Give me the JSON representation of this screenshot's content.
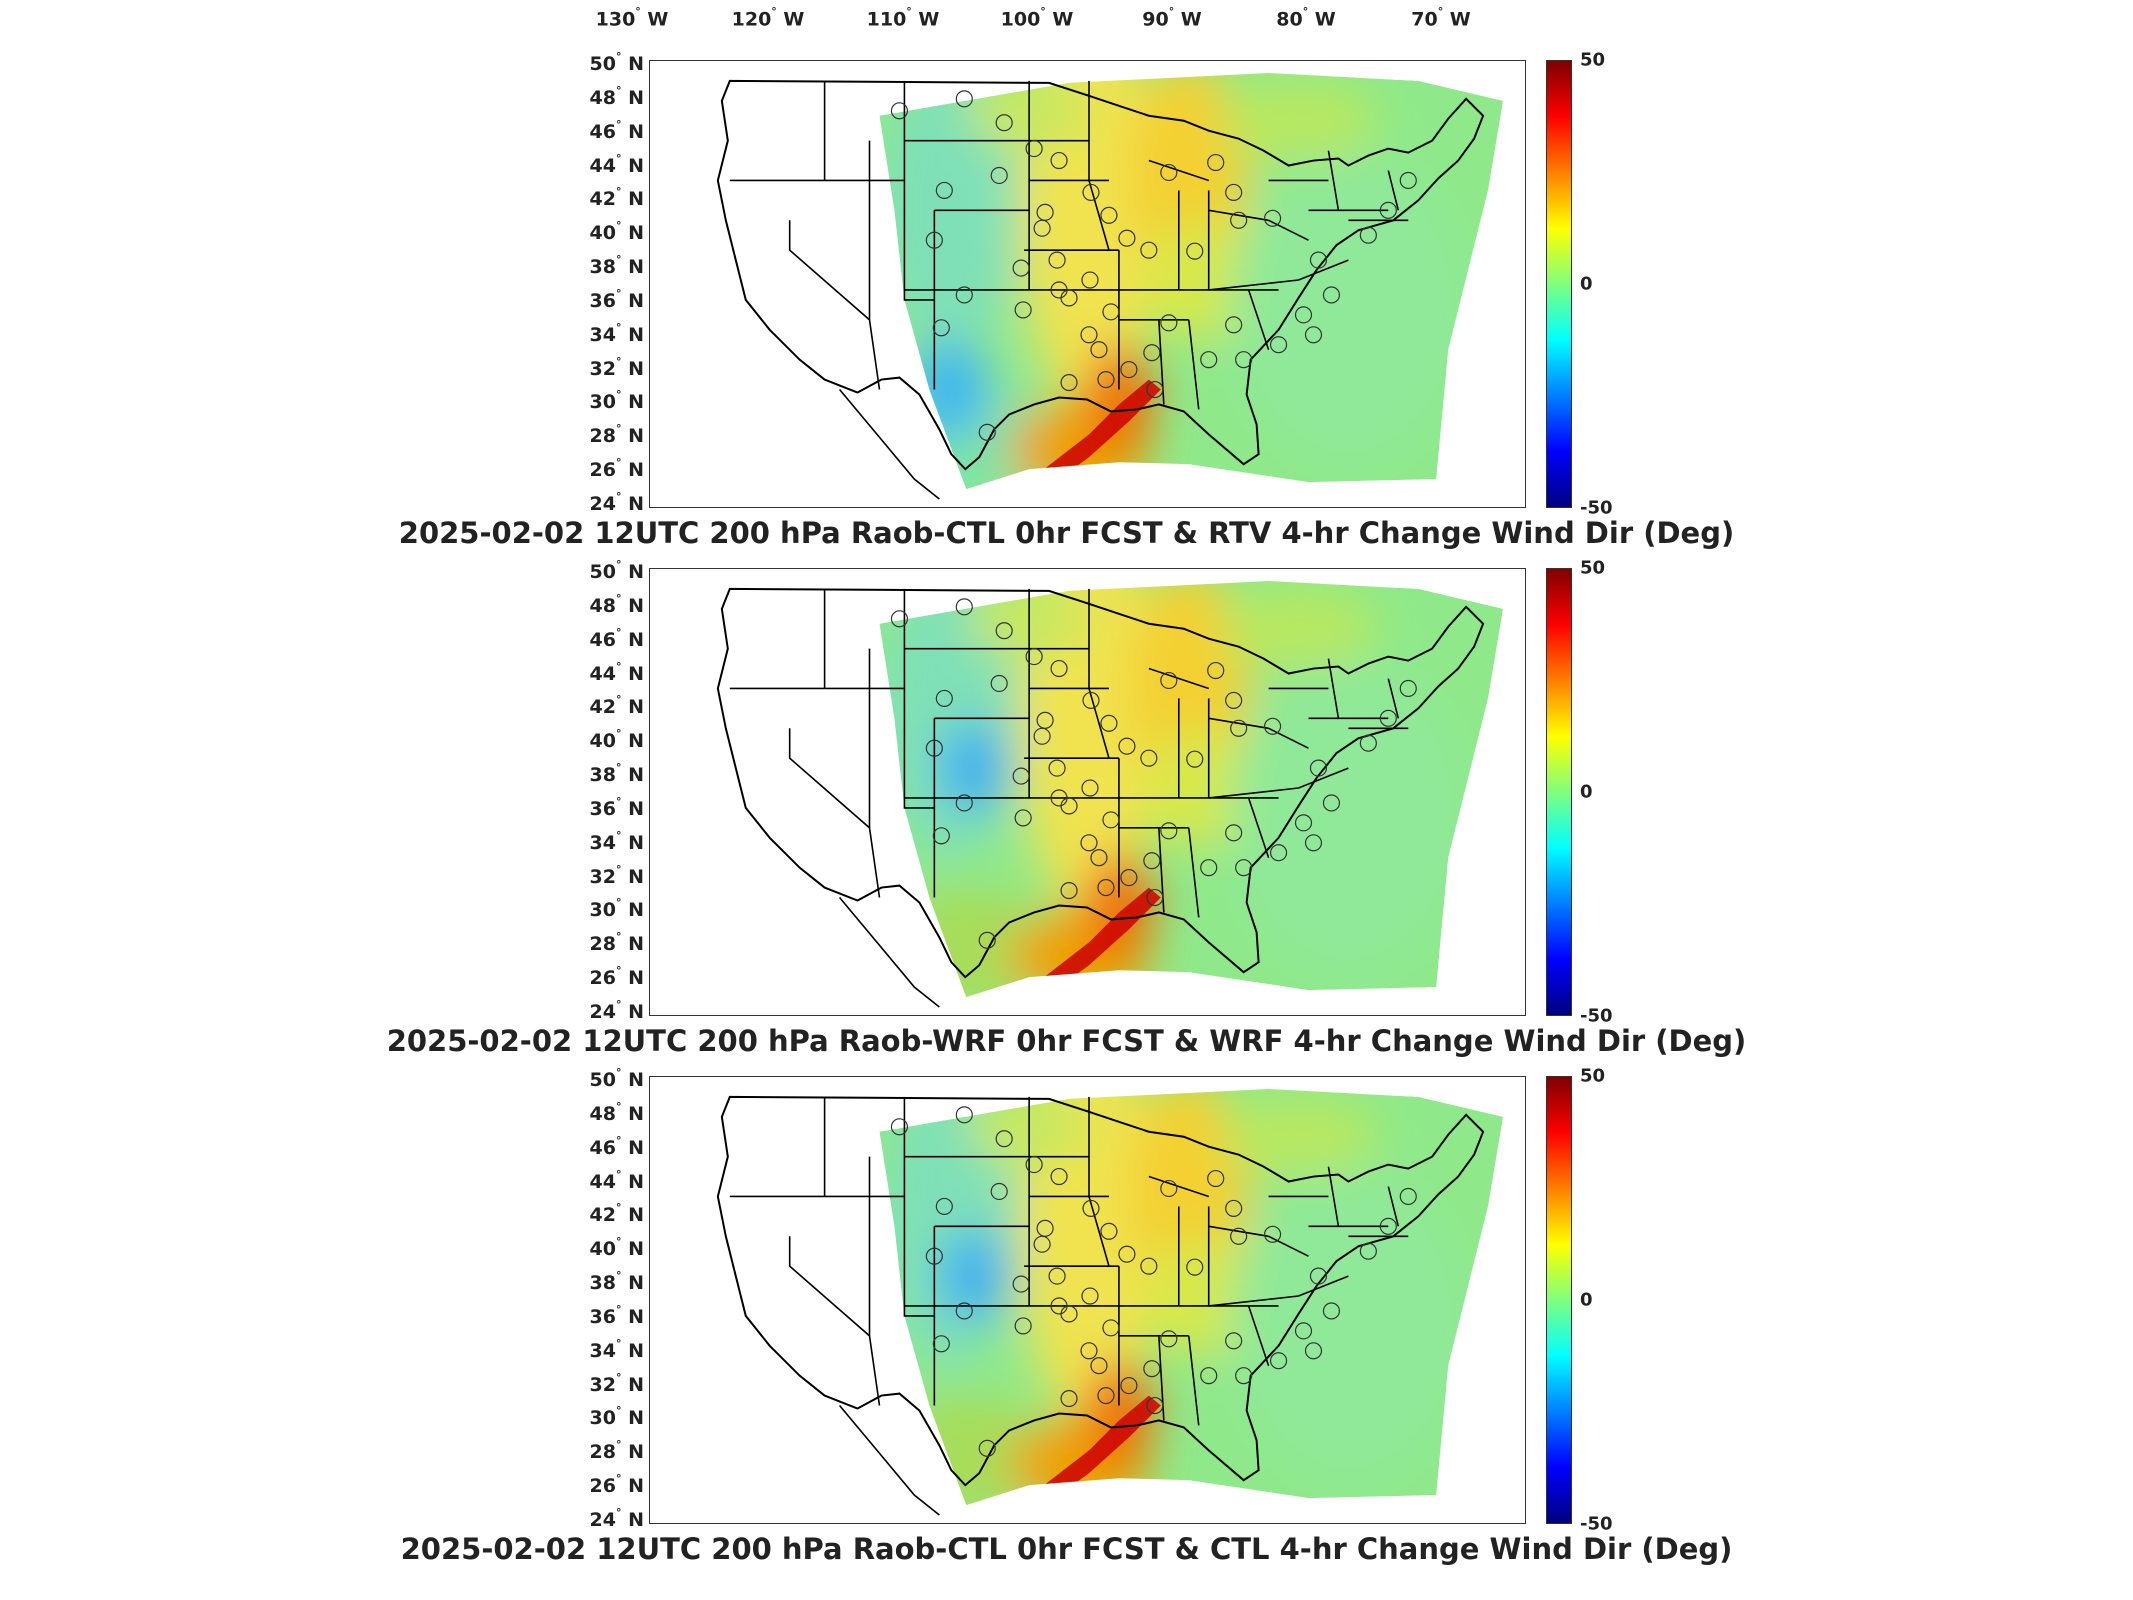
{
  "colorbar": {
    "max_label": "50",
    "mid_label": "0",
    "min_label": "-50",
    "stops": [
      "#00007f",
      "#0000ff",
      "#007fff",
      "#00ffff",
      "#7fff7f",
      "#ffff00",
      "#ff7f00",
      "#ff0000",
      "#7f0000"
    ]
  },
  "longitude_labels": [
    {
      "deg": "130",
      "hemi": "W"
    },
    {
      "deg": "120",
      "hemi": "W"
    },
    {
      "deg": "110",
      "hemi": "W"
    },
    {
      "deg": "100",
      "hemi": "W"
    },
    {
      "deg": "90",
      "hemi": "W"
    },
    {
      "deg": "80",
      "hemi": "W"
    },
    {
      "deg": "70",
      "hemi": "W"
    }
  ],
  "latitude_labels": [
    {
      "deg": "50",
      "hemi": "N"
    },
    {
      "deg": "48",
      "hemi": "N"
    },
    {
      "deg": "46",
      "hemi": "N"
    },
    {
      "deg": "44",
      "hemi": "N"
    },
    {
      "deg": "42",
      "hemi": "N"
    },
    {
      "deg": "40",
      "hemi": "N"
    },
    {
      "deg": "38",
      "hemi": "N"
    },
    {
      "deg": "36",
      "hemi": "N"
    },
    {
      "deg": "34",
      "hemi": "N"
    },
    {
      "deg": "32",
      "hemi": "N"
    },
    {
      "deg": "30",
      "hemi": "N"
    },
    {
      "deg": "28",
      "hemi": "N"
    },
    {
      "deg": "26",
      "hemi": "N"
    },
    {
      "deg": "24",
      "hemi": "N"
    }
  ],
  "panels": [
    {
      "title": "2025-02-02 12UTC 200 hPa Raob-CTL 0hr FCST & RTV 4-hr Change Wind Dir (Deg)"
    },
    {
      "title": "2025-02-02 12UTC 200 hPa Raob-WRF 0hr FCST & WRF 4-hr Change Wind Dir (Deg)"
    },
    {
      "title": "2025-02-02 12UTC 200 hPa Raob-CTL 0hr FCST & CTL 4-hr Change Wind Dir (Deg)"
    }
  ]
}
